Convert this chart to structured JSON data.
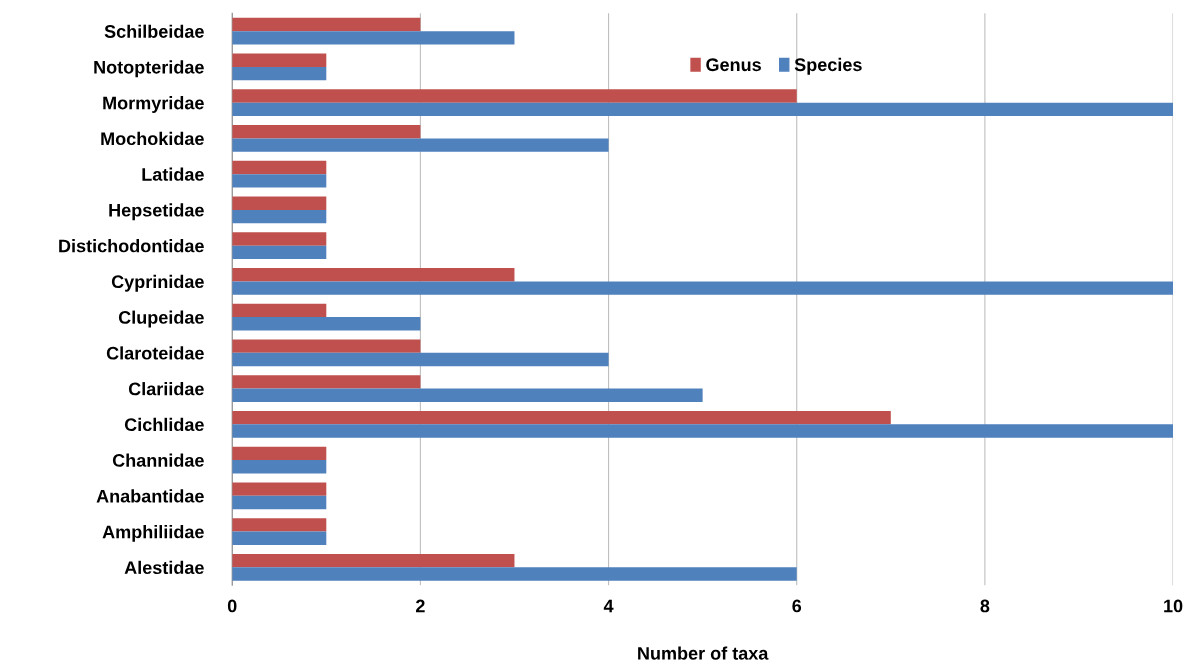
{
  "chart_data": {
    "type": "bar",
    "orientation": "horizontal",
    "xlabel": "Number of taxa",
    "categories": [
      "Schilbeidae",
      "Notopteridae",
      "Mormyridae",
      "Mochokidae",
      "Latidae",
      "Hepsetidae",
      "Distichodontidae",
      "Cyprinidae",
      "Clupeidae",
      "Claroteidae",
      "Clariidae",
      "Cichlidae",
      "Channidae",
      "Anabantidae",
      "Amphiliidae",
      "Alestidae"
    ],
    "series": [
      {
        "name": "Genus",
        "color": "#c0504d",
        "values": [
          2,
          1,
          6,
          2,
          1,
          1,
          1,
          3,
          1,
          2,
          2,
          7,
          1,
          1,
          1,
          3
        ]
      },
      {
        "name": "Species",
        "color": "#4f81bd",
        "values": [
          3,
          1,
          10,
          4,
          1,
          1,
          1,
          10,
          2,
          4,
          5,
          10,
          1,
          1,
          1,
          6
        ]
      }
    ],
    "xlim": [
      0,
      10
    ],
    "xticks": [
      0,
      2,
      4,
      6,
      8,
      10
    ],
    "grid": "x",
    "legend": "top right"
  }
}
